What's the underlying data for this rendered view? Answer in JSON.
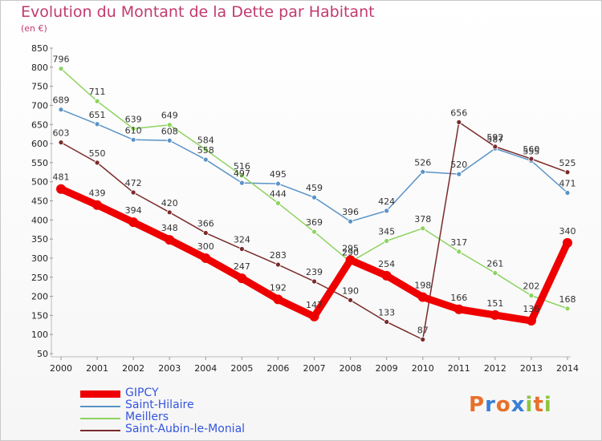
{
  "title": "Evolution du Montant de la Dette par Habitant",
  "unit_label": "(en €)",
  "logo": {
    "text": "Proxiti",
    "letter_colors": [
      "#e8702a",
      "#3a7fd5",
      "#e8702a",
      "#3a7fd5",
      "#8dc63f",
      "#e8702a",
      "#8dc63f"
    ]
  },
  "chart_data": {
    "type": "line",
    "x": [
      "2000",
      "2001",
      "2002",
      "2003",
      "2004",
      "2005",
      "2006",
      "2007",
      "2008",
      "2009",
      "2010",
      "2011",
      "2012",
      "2013",
      "2014"
    ],
    "ylim": [
      50,
      850
    ],
    "yticks": [
      50,
      100,
      150,
      200,
      250,
      300,
      350,
      400,
      450,
      500,
      550,
      600,
      650,
      700,
      750,
      800,
      850
    ],
    "grid": false,
    "legend_position": "bottom-left",
    "series": [
      {
        "name": "GIPCY",
        "color": "#ee0000",
        "thick": true,
        "values": [
          481,
          439,
          394,
          348,
          300,
          247,
          192,
          147,
          295,
          254,
          198,
          166,
          151,
          136,
          340
        ]
      },
      {
        "name": "Saint-Hilaire",
        "color": "#5b93c7",
        "thick": false,
        "values": [
          689,
          651,
          610,
          608,
          558,
          497,
          495,
          459,
          396,
          424,
          526,
          520,
          587,
          555,
          471
        ]
      },
      {
        "name": "Meillers",
        "color": "#8dd35f",
        "thick": false,
        "values": [
          796,
          711,
          639,
          649,
          584,
          516,
          444,
          369,
          290,
          345,
          378,
          317,
          261,
          202,
          168
        ]
      },
      {
        "name": "Saint-Aubin-le-Monial",
        "color": "#7a2a2a",
        "thick": false,
        "values": [
          603,
          550,
          472,
          420,
          366,
          324,
          283,
          239,
          190,
          133,
          87,
          656,
          592,
          560,
          525
        ]
      }
    ]
  }
}
